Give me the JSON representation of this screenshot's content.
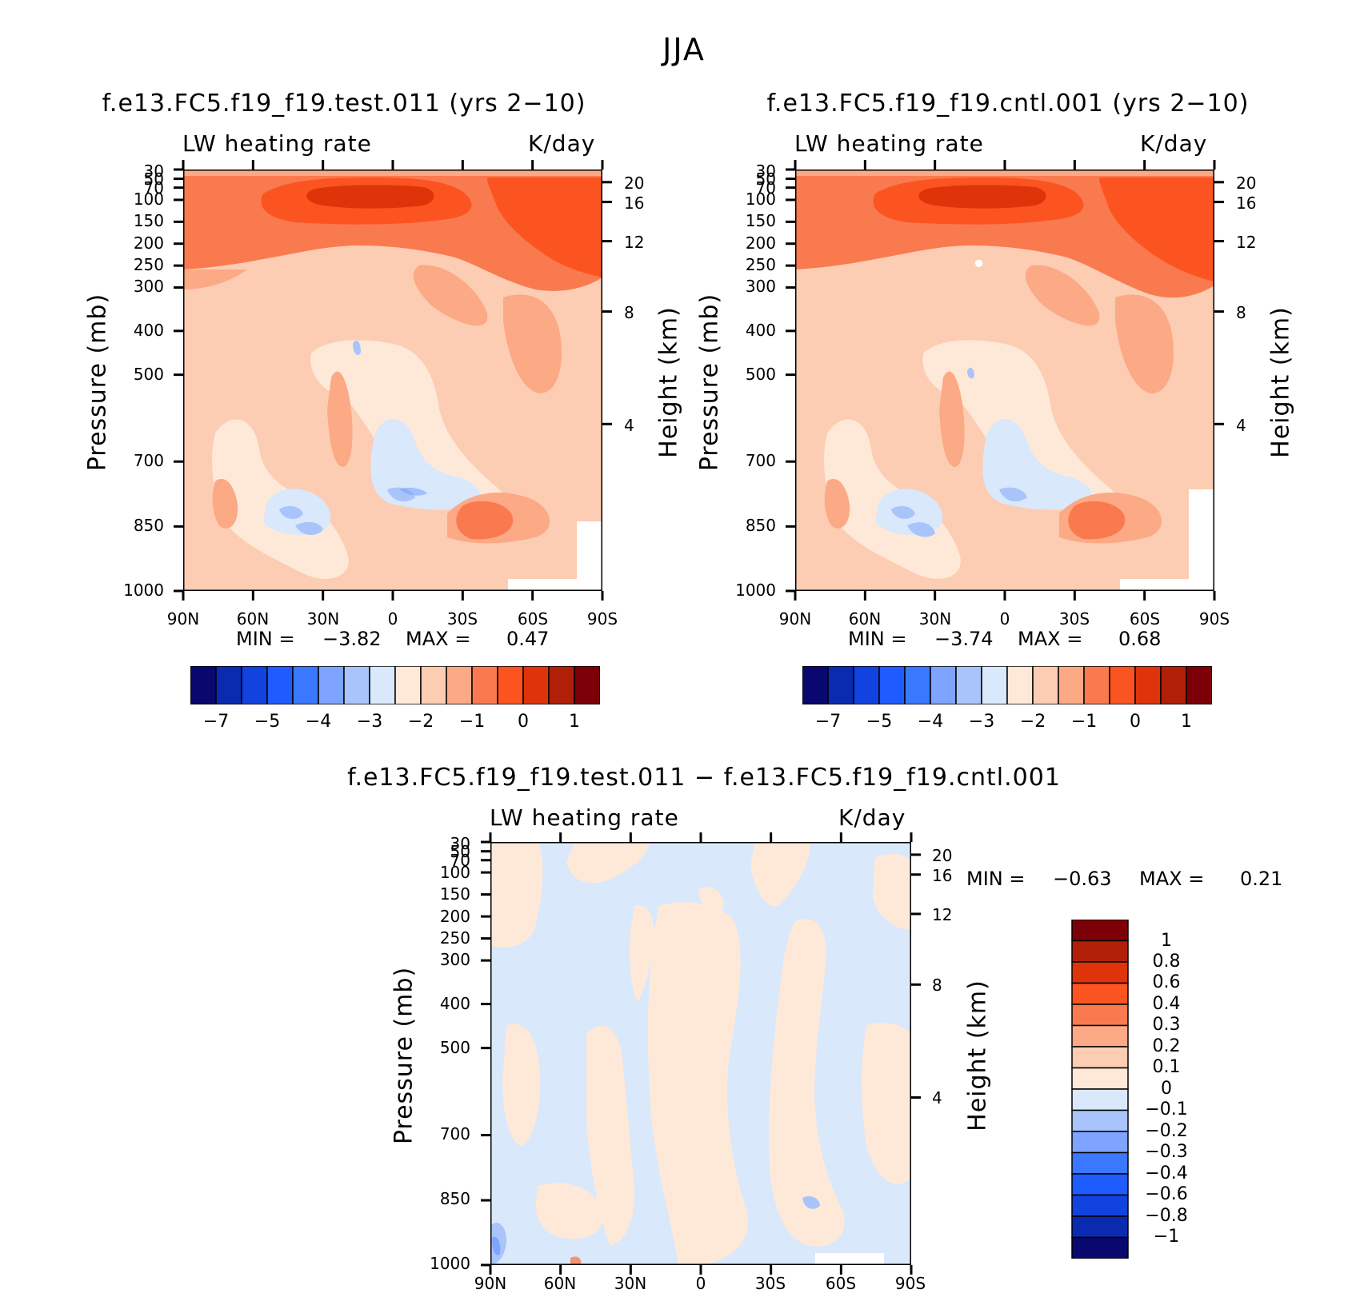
{
  "page_title": "JJA",
  "colors": {
    "neg": [
      "#08086e",
      "#0a2bb0",
      "#1143e0",
      "#1f5cff",
      "#3a78ff",
      "#7ea4ff",
      "#a9c4fa",
      "#d9e8fb"
    ],
    "pos": [
      "#fee9d9",
      "#fccdb2",
      "#fca986",
      "#fa7a50",
      "#fc5421",
      "#df3409",
      "#b21f08",
      "#7d0008"
    ],
    "diff_scale": [
      "#08086e",
      "#0a2bb0",
      "#1143e0",
      "#1f5cff",
      "#3a78ff",
      "#7ea4ff",
      "#a9c4fa",
      "#d9e8fb",
      "#fee9d9",
      "#fccdb2",
      "#fca986",
      "#fa7a50",
      "#fc5421",
      "#df3409",
      "#b21f08",
      "#7d0008"
    ]
  },
  "icons": [
    "none"
  ],
  "chart_data": [
    {
      "type": "heatmap",
      "title": "f.e13.FC5.f19_f19.test.011 (yrs 2−10)",
      "variable": "LW heating rate",
      "units": "K/day",
      "ylabel": "Pressure (mb)",
      "y2label": "Height (km)",
      "xticks": [
        "90N",
        "60N",
        "30N",
        "0",
        "30S",
        "60S",
        "90S"
      ],
      "yticks": [
        "30",
        "50",
        "70",
        "100",
        "150",
        "200",
        "250",
        "300",
        "400",
        "500",
        "700",
        "850",
        "1000"
      ],
      "y2ticks": [
        "20",
        "16",
        "12",
        "8",
        "4"
      ],
      "min_label": "MIN =",
      "min": "−3.82",
      "max_label": "MAX =",
      "max": "0.47",
      "colorbar_labels": [
        "−7",
        "−5",
        "−4",
        "−3",
        "−2",
        "−1",
        "0",
        "1"
      ]
    },
    {
      "type": "heatmap",
      "title": "f.e13.FC5.f19_f19.cntl.001 (yrs 2−10)",
      "variable": "LW heating rate",
      "units": "K/day",
      "ylabel": "Pressure (mb)",
      "y2label": "Height (km)",
      "xticks": [
        "90N",
        "60N",
        "30N",
        "0",
        "30S",
        "60S",
        "90S"
      ],
      "yticks": [
        "30",
        "50",
        "70",
        "100",
        "150",
        "200",
        "250",
        "300",
        "400",
        "500",
        "700",
        "850",
        "1000"
      ],
      "y2ticks": [
        "20",
        "16",
        "12",
        "8",
        "4"
      ],
      "min_label": "MIN =",
      "min": "−3.74",
      "max_label": "MAX =",
      "max": "0.68",
      "colorbar_labels": [
        "−7",
        "−5",
        "−4",
        "−3",
        "−2",
        "−1",
        "0",
        "1"
      ]
    },
    {
      "type": "heatmap",
      "title": "f.e13.FC5.f19_f19.test.011 − f.e13.FC5.f19_f19.cntl.001",
      "variable": "LW heating rate",
      "units": "K/day",
      "ylabel": "Pressure (mb)",
      "y2label": "Height (km)",
      "xticks": [
        "90N",
        "60N",
        "30N",
        "0",
        "30S",
        "60S",
        "90S"
      ],
      "yticks": [
        "30",
        "50",
        "70",
        "100",
        "150",
        "200",
        "250",
        "300",
        "400",
        "500",
        "700",
        "850",
        "1000"
      ],
      "y2ticks": [
        "20",
        "16",
        "12",
        "8",
        "4"
      ],
      "min_label": "MIN =",
      "min": "−0.63",
      "max_label": "MAX =",
      "max": "0.21",
      "colorbar_labels": [
        "1",
        "0.8",
        "0.6",
        "0.4",
        "0.3",
        "0.2",
        "0.1",
        "0",
        "−0.1",
        "−0.2",
        "−0.3",
        "−0.4",
        "−0.6",
        "−0.8",
        "−1"
      ]
    }
  ]
}
